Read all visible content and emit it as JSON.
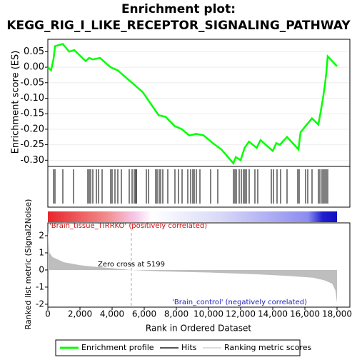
{
  "chart_data": [
    {
      "type": "line",
      "title": "Enrichment plot:",
      "subtitle": "KEGG_RIG_I_LIKE_RECEPTOR_SIGNALING_PATHWAY",
      "y_label": "Enrichment score (ES)",
      "x": [
        0,
        200,
        350,
        450,
        930,
        1330,
        1650,
        2350,
        2580,
        2800,
        3250,
        3900,
        4350,
        5900,
        6900,
        7330,
        7900,
        8350,
        8800,
        9240,
        9700,
        10270,
        10800,
        11550,
        11700,
        12000,
        12250,
        12520,
        13000,
        13240,
        14000,
        14220,
        14440,
        14890,
        15600,
        15730,
        16040,
        16440,
        16840,
        16980,
        17110,
        17240,
        17330,
        17420,
        18000
      ],
      "series": [
        {
          "name": "Enrichment profile",
          "color": "#00ff00",
          "values": [
            0,
            -0.01,
            0.025,
            0.068,
            0.075,
            0.05,
            0.055,
            0.02,
            0.03,
            0.025,
            0.03,
            0.0,
            -0.01,
            -0.08,
            -0.155,
            -0.16,
            -0.19,
            -0.2,
            -0.22,
            -0.215,
            -0.22,
            -0.245,
            -0.265,
            -0.31,
            -0.29,
            -0.3,
            -0.26,
            -0.24,
            -0.26,
            -0.235,
            -0.27,
            -0.245,
            -0.25,
            -0.225,
            -0.265,
            -0.21,
            -0.19,
            -0.165,
            -0.185,
            -0.145,
            -0.105,
            -0.06,
            -0.02,
            0.035,
            0.003
          ]
        }
      ],
      "hits": {
        "name": "Hits",
        "color": "#000000",
        "x": [
          356,
          444,
          933,
          1600,
          2489,
          2578,
          2667,
          2800,
          3022,
          3156,
          3378,
          3911,
          4000,
          4178,
          4356,
          4578,
          5067,
          5244,
          5378,
          5467,
          5511,
          6133,
          6267,
          6711,
          6800,
          6933,
          7022,
          7156,
          7467,
          7911,
          8133,
          8356,
          8711,
          8889,
          9022,
          9111,
          9244,
          9467,
          10133,
          10578,
          11556,
          11644,
          11733,
          11911,
          12044,
          12178,
          12267,
          12356,
          12533,
          12889,
          13067,
          13911,
          14044,
          14267,
          14489,
          14889,
          15556,
          15644,
          16044,
          16178,
          16444,
          16844,
          16933,
          17067,
          17156,
          17244,
          17333,
          17422
        ]
      },
      "xlim": [
        0,
        18800
      ],
      "ylim": [
        -0.32,
        0.09
      ],
      "yticks": [
        0.05,
        {
          "value": 0,
          "label": "0.00"
        },
        -0.05,
        {
          "value": -0.1,
          "label": "-0.10"
        },
        -0.15,
        {
          "value": -0.2,
          "label": "-0.20"
        },
        -0.25,
        {
          "value": -0.3,
          "label": "-0.30"
        }
      ],
      "grid": true
    },
    {
      "type": "area",
      "x_label": "Rank in Ordered Dataset",
      "y_label": "Ranked list metric (Signal2Noise)",
      "name": "Ranking metric scores",
      "color": "#bebebe",
      "x": [
        0,
        100,
        300,
        1000,
        2000,
        3000,
        4000,
        5199,
        7000,
        10000,
        13000,
        15000,
        16500,
        17200,
        17700,
        17900,
        18000
      ],
      "values": [
        2.3,
        1.0,
        0.75,
        0.45,
        0.28,
        0.18,
        0.1,
        0,
        -0.08,
        -0.15,
        -0.25,
        -0.35,
        -0.45,
        -0.6,
        -0.8,
        -1.2,
        -1.9
      ],
      "xlim": [
        0,
        18800
      ],
      "ylim": [
        -2.17,
        2.75
      ],
      "xticks": [
        0,
        {
          "value": 2000,
          "label": "2,000"
        },
        {
          "value": 4000,
          "label": "4,000"
        },
        {
          "value": 6000,
          "label": "6,000"
        },
        {
          "value": 8000,
          "label": "8,000"
        },
        {
          "value": 10000,
          "label": "10,000"
        },
        {
          "value": 12000,
          "label": "12,000"
        },
        {
          "value": 14000,
          "label": "14,000"
        },
        {
          "value": 16000,
          "label": "16,000"
        },
        {
          "value": 18000,
          "label": "18,000"
        }
      ],
      "yticks": [
        2,
        1,
        0,
        -1,
        -2
      ],
      "zero_cross": 5199,
      "zero_cross_label": "Zero cross at 5199",
      "pos_label": "'Brain_tissue_TIRRKO' (positively correlated)",
      "neg_label": "'Brain_control' (negatively correlated)"
    }
  ]
}
